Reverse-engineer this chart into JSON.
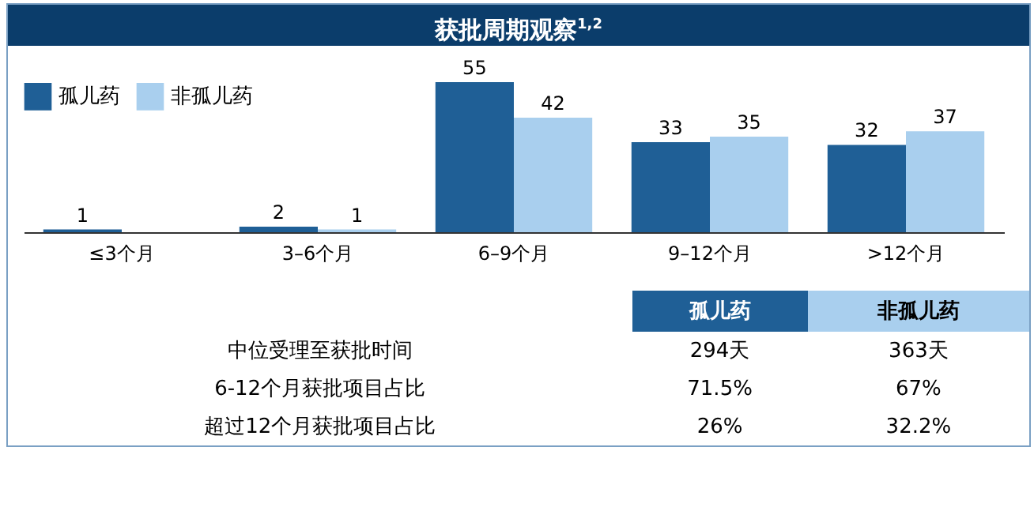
{
  "chart_data": {
    "type": "bar",
    "title": "获批周期观察$^{1,2}$",
    "categories": [
      "≤3个月",
      "3–6个月",
      "6–9个月",
      "9–12个月",
      ">12个月"
    ],
    "series": [
      {
        "name": "孤儿药",
        "color": "#1f5f96",
        "values": [
          1,
          2,
          55,
          33,
          32
        ]
      },
      {
        "name": "非孤儿药",
        "color": "#a9cfee",
        "values": [
          null,
          1,
          42,
          35,
          37
        ]
      }
    ],
    "data_labels": true,
    "legend": "top left",
    "annotations": [
      "中位受理至获批时间",
      "294天",
      "363天",
      "6-12个月获批项目占比",
      "71.5%",
      "67%",
      "超过12个月获批项目占比",
      "26%",
      "32.2%"
    ]
  }
}
